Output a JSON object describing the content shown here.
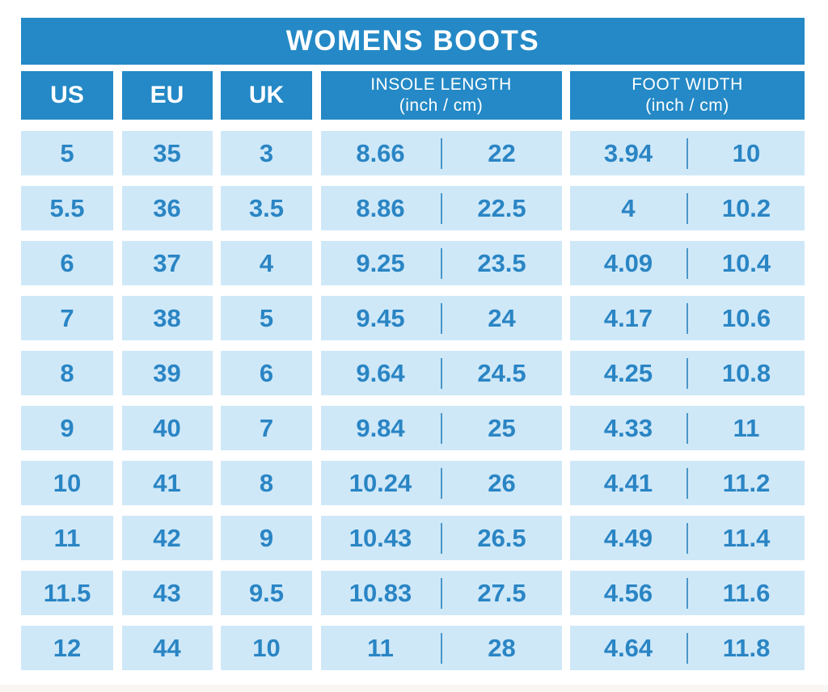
{
  "title": "WOMENS BOOTS",
  "header": {
    "us": "US",
    "eu": "EU",
    "uk": "UK",
    "insole_label": "INSOLE LENGTH",
    "insole_sub": "(inch / cm)",
    "foot_label": "FOOT WIDTH",
    "foot_sub": "(inch / cm)"
  },
  "rows": [
    {
      "us": "5",
      "eu": "35",
      "uk": "3",
      "insole_in": "8.66",
      "insole_cm": "22",
      "width_in": "3.94",
      "width_cm": "10"
    },
    {
      "us": "5.5",
      "eu": "36",
      "uk": "3.5",
      "insole_in": "8.86",
      "insole_cm": "22.5",
      "width_in": "4",
      "width_cm": "10.2"
    },
    {
      "us": "6",
      "eu": "37",
      "uk": "4",
      "insole_in": "9.25",
      "insole_cm": "23.5",
      "width_in": "4.09",
      "width_cm": "10.4"
    },
    {
      "us": "7",
      "eu": "38",
      "uk": "5",
      "insole_in": "9.45",
      "insole_cm": "24",
      "width_in": "4.17",
      "width_cm": "10.6"
    },
    {
      "us": "8",
      "eu": "39",
      "uk": "6",
      "insole_in": "9.64",
      "insole_cm": "24.5",
      "width_in": "4.25",
      "width_cm": "10.8"
    },
    {
      "us": "9",
      "eu": "40",
      "uk": "7",
      "insole_in": "9.84",
      "insole_cm": "25",
      "width_in": "4.33",
      "width_cm": "11"
    },
    {
      "us": "10",
      "eu": "41",
      "uk": "8",
      "insole_in": "10.24",
      "insole_cm": "26",
      "width_in": "4.41",
      "width_cm": "11.2"
    },
    {
      "us": "11",
      "eu": "42",
      "uk": "9",
      "insole_in": "10.43",
      "insole_cm": "26.5",
      "width_in": "4.49",
      "width_cm": "11.4"
    },
    {
      "us": "11.5",
      "eu": "43",
      "uk": "9.5",
      "insole_in": "10.83",
      "insole_cm": "27.5",
      "width_in": "4.56",
      "width_cm": "11.6"
    },
    {
      "us": "12",
      "eu": "44",
      "uk": "10",
      "insole_in": "11",
      "insole_cm": "28",
      "width_in": "4.64",
      "width_cm": "11.8"
    }
  ],
  "chart_data": {
    "type": "table",
    "title": "WOMENS BOOTS",
    "columns": [
      "US",
      "EU",
      "UK",
      "INSOLE LENGTH (inch)",
      "INSOLE LENGTH (cm)",
      "FOOT WIDTH (inch)",
      "FOOT WIDTH (cm)"
    ],
    "rows": [
      [
        "5",
        "35",
        "3",
        "8.66",
        "22",
        "3.94",
        "10"
      ],
      [
        "5.5",
        "36",
        "3.5",
        "8.86",
        "22.5",
        "4",
        "10.2"
      ],
      [
        "6",
        "37",
        "4",
        "9.25",
        "23.5",
        "4.09",
        "10.4"
      ],
      [
        "7",
        "38",
        "5",
        "9.45",
        "24",
        "4.17",
        "10.6"
      ],
      [
        "8",
        "39",
        "6",
        "9.64",
        "24.5",
        "4.25",
        "10.8"
      ],
      [
        "9",
        "40",
        "7",
        "9.84",
        "25",
        "4.33",
        "11"
      ],
      [
        "10",
        "41",
        "8",
        "10.24",
        "26",
        "4.41",
        "11.2"
      ],
      [
        "11",
        "42",
        "9",
        "10.43",
        "26.5",
        "4.49",
        "11.4"
      ],
      [
        "11.5",
        "43",
        "9.5",
        "10.83",
        "27.5",
        "4.56",
        "11.6"
      ],
      [
        "12",
        "44",
        "10",
        "11",
        "28",
        "4.64",
        "11.8"
      ]
    ]
  },
  "colors": {
    "banner_blue": "#2489c6",
    "cell_blue": "#cfe8f8",
    "number_blue": "#2a85c4",
    "divider_blue": "#4a96c8",
    "footer_strip": "#f9f6f3"
  }
}
